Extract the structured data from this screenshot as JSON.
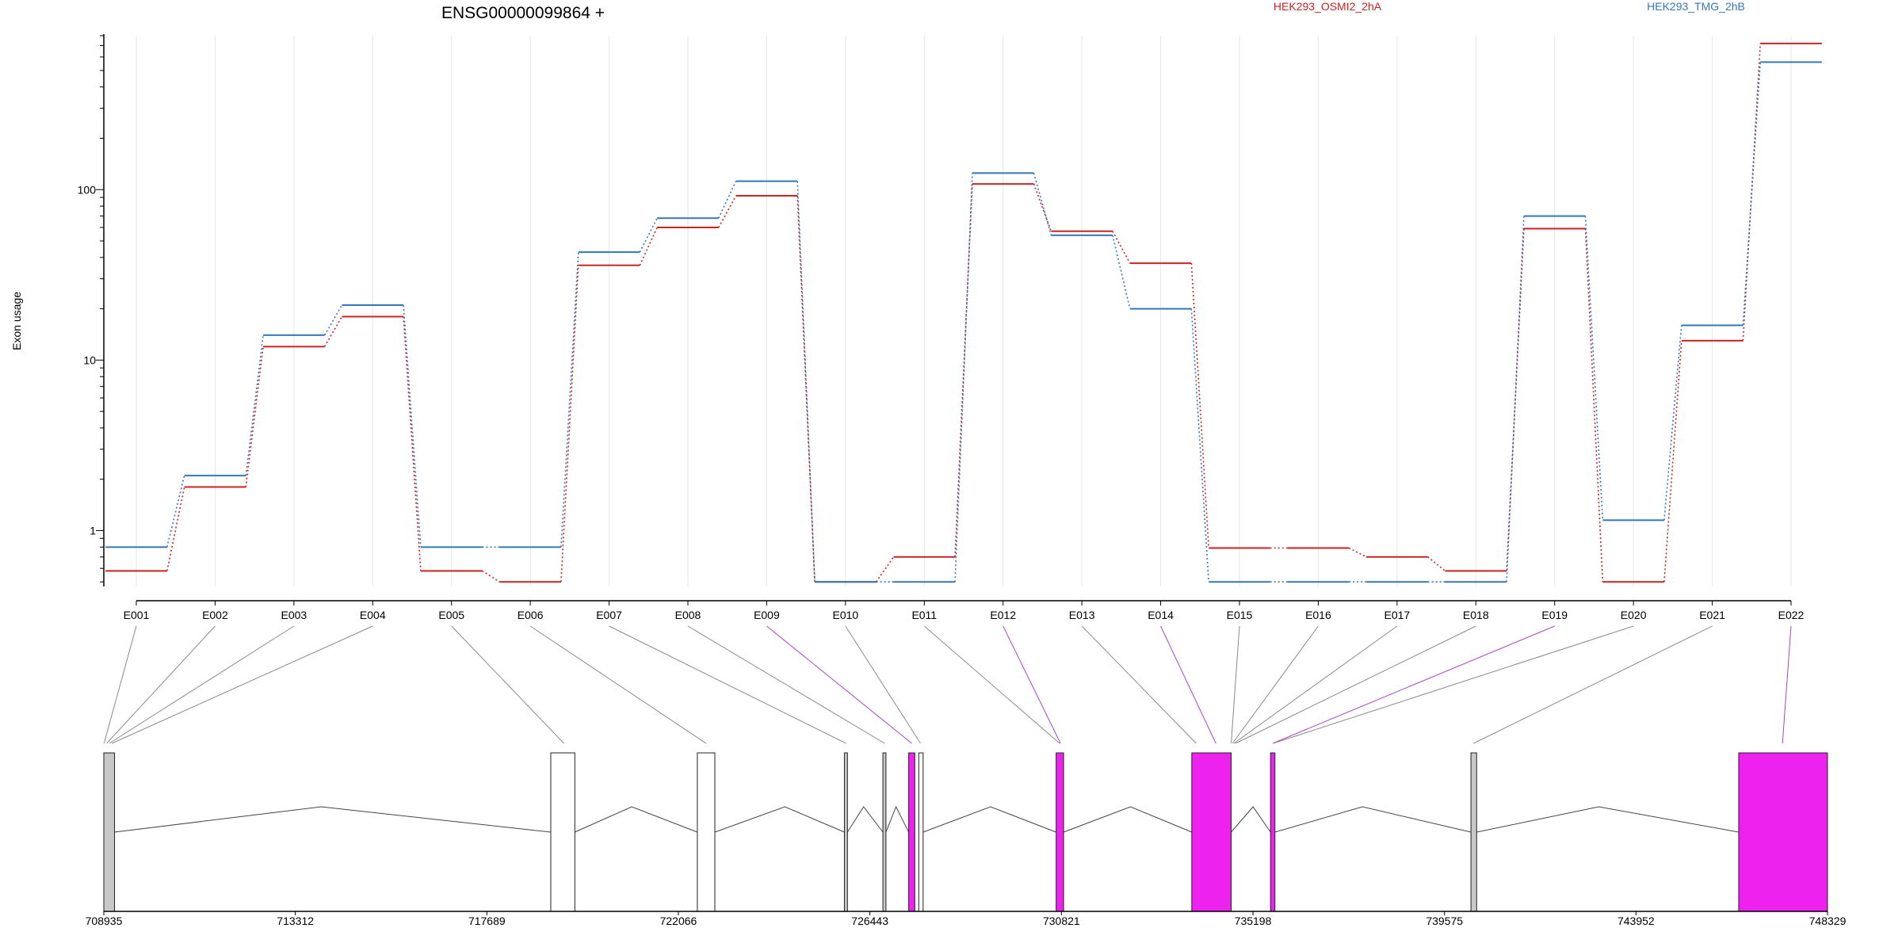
{
  "chart_data": {
    "type": "line",
    "title": "ENSG00000099864 +",
    "ylabel": "Exon usage",
    "xlabel": "",
    "y_scale": "log",
    "ylim": [
      0.47,
      800
    ],
    "y_ticks": [
      1,
      10,
      100
    ],
    "y_tick_labels": [
      "1",
      "10",
      "100"
    ],
    "grid": "vertical",
    "legend_position": "top",
    "categories": [
      "E001",
      "E002",
      "E003",
      "E004",
      "E005",
      "E006",
      "E007",
      "E008",
      "E009",
      "E010",
      "E011",
      "E012",
      "E013",
      "E014",
      "E015",
      "E016",
      "E017",
      "E018",
      "E019",
      "E020",
      "E021",
      "E022"
    ],
    "series": [
      {
        "name": "HEK293_OSMI2_2hA",
        "color": "#cc2222",
        "values": [
          0.58,
          1.8,
          12,
          18,
          0.58,
          0.5,
          36,
          60,
          92,
          0.5,
          0.7,
          108,
          57,
          37,
          0.79,
          0.79,
          0.7,
          0.58,
          59,
          0.5,
          13,
          720
        ]
      },
      {
        "name": "HEK293_TMG_2hB",
        "color": "#3377bb",
        "values": [
          0.8,
          2.1,
          14,
          21,
          0.8,
          0.8,
          43,
          68,
          112,
          0.5,
          0.5,
          125,
          54,
          20,
          0.5,
          0.5,
          0.5,
          0.5,
          70,
          1.15,
          16,
          560
        ]
      }
    ],
    "gene_model": {
      "coordinate_ticks": [
        "708935",
        "713312",
        "717689",
        "722066",
        "726443",
        "730821",
        "735198",
        "739575",
        "743952",
        "748329"
      ],
      "coord_range": [
        708935,
        748329
      ],
      "highlight_color": "#ee22ee",
      "exons": [
        {
          "start": 708935,
          "end": 709180,
          "fill": "#c8c8c8"
        },
        {
          "start": 719150,
          "end": 719700,
          "fill": "#ffffff"
        },
        {
          "start": 722500,
          "end": 722900,
          "fill": "#ffffff"
        },
        {
          "start": 725860,
          "end": 725930,
          "fill": "#c8c8c8"
        },
        {
          "start": 726740,
          "end": 726810,
          "fill": "#c8c8c8"
        },
        {
          "start": 727330,
          "end": 727470,
          "fill": "#ee22ee"
        },
        {
          "start": 727560,
          "end": 727660,
          "fill": "#ffffff"
        },
        {
          "start": 730700,
          "end": 730870,
          "fill": "#ee22ee"
        },
        {
          "start": 733800,
          "end": 734700,
          "fill": "#ee22ee"
        },
        {
          "start": 735600,
          "end": 735700,
          "fill": "#ee22ee"
        },
        {
          "start": 740180,
          "end": 740310,
          "fill": "#c8c8c8"
        },
        {
          "start": 746300,
          "end": 748329,
          "fill": "#ee22ee"
        }
      ],
      "introns": [
        [
          709180,
          719150,
          713900
        ],
        [
          719700,
          722500,
          721000
        ],
        [
          722900,
          725860,
          724500
        ],
        [
          725930,
          726740,
          726300
        ],
        [
          726810,
          727330,
          727040
        ],
        [
          727660,
          730700,
          729200
        ],
        [
          730870,
          733800,
          732400
        ],
        [
          734700,
          735600,
          735200
        ],
        [
          735700,
          740180,
          737700
        ],
        [
          740310,
          746300,
          743100
        ]
      ],
      "exon_links": [
        {
          "exon": "E001",
          "to": 708940,
          "highlight": false
        },
        {
          "exon": "E002",
          "to": 709000,
          "highlight": false
        },
        {
          "exon": "E003",
          "to": 709060,
          "highlight": false
        },
        {
          "exon": "E004",
          "to": 709120,
          "highlight": false
        },
        {
          "exon": "E005",
          "to": 719450,
          "highlight": false
        },
        {
          "exon": "E006",
          "to": 722700,
          "highlight": false
        },
        {
          "exon": "E007",
          "to": 725900,
          "highlight": false
        },
        {
          "exon": "E008",
          "to": 726780,
          "highlight": false
        },
        {
          "exon": "E009",
          "to": 727400,
          "highlight": true
        },
        {
          "exon": "E010",
          "to": 727600,
          "highlight": false
        },
        {
          "exon": "E011",
          "to": 730780,
          "highlight": false
        },
        {
          "exon": "E012",
          "to": 730800,
          "highlight": true
        },
        {
          "exon": "E013",
          "to": 733900,
          "highlight": false
        },
        {
          "exon": "E014",
          "to": 734350,
          "highlight": true
        },
        {
          "exon": "E015",
          "to": 734700,
          "highlight": false
        },
        {
          "exon": "E016",
          "to": 734730,
          "highlight": false
        },
        {
          "exon": "E017",
          "to": 734760,
          "highlight": false
        },
        {
          "exon": "E018",
          "to": 734800,
          "highlight": false
        },
        {
          "exon": "E019",
          "to": 735650,
          "highlight": true
        },
        {
          "exon": "E020",
          "to": 735660,
          "highlight": false
        },
        {
          "exon": "E021",
          "to": 740240,
          "highlight": false
        },
        {
          "exon": "E022",
          "to": 747300,
          "highlight": true
        }
      ]
    }
  }
}
